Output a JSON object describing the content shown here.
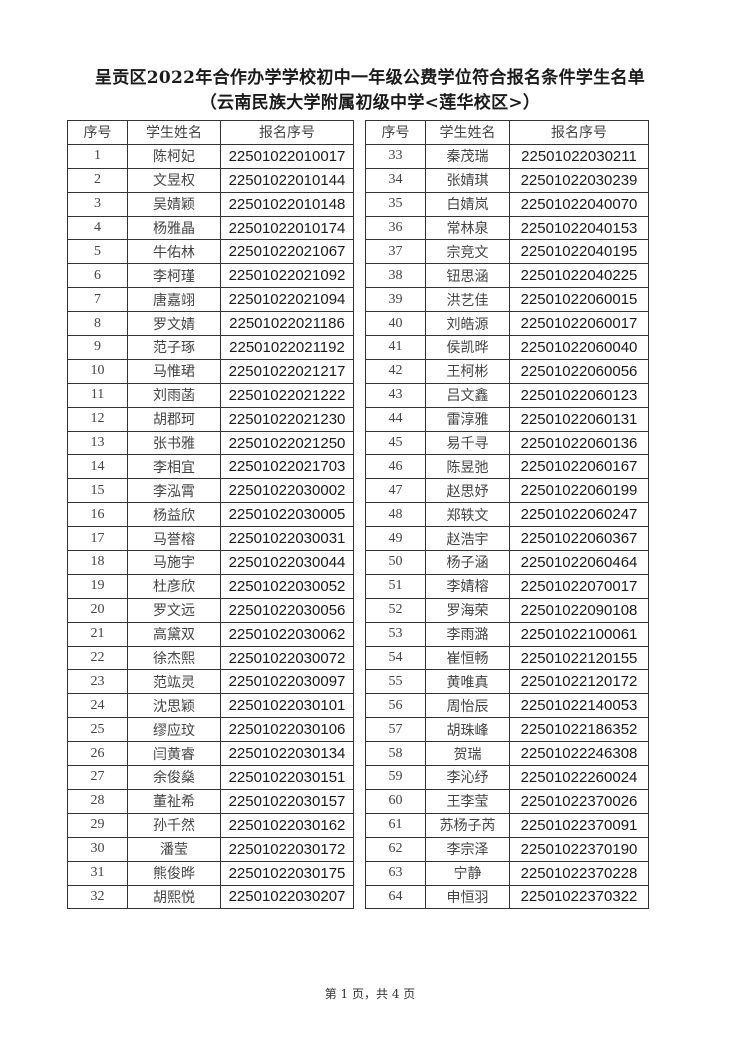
{
  "title": "呈贡区2022年合作办学学校初中一年级公费学位符合报名条件学生名单",
  "subtitle": "（云南民族大学附属初级中学<莲华校区>）",
  "columns": [
    "序号",
    "学生姓名",
    "报名序号"
  ],
  "left_rows": [
    [
      "1",
      "陈柯妃",
      "22501022010017"
    ],
    [
      "2",
      "文昱权",
      "22501022010144"
    ],
    [
      "3",
      "吴婧颖",
      "22501022010148"
    ],
    [
      "4",
      "杨雅晶",
      "22501022010174"
    ],
    [
      "5",
      "牛佑林",
      "22501022021067"
    ],
    [
      "6",
      "李柯瑾",
      "22501022021092"
    ],
    [
      "7",
      "唐嘉翊",
      "22501022021094"
    ],
    [
      "8",
      "罗文婧",
      "22501022021186"
    ],
    [
      "9",
      "范子琢",
      "22501022021192"
    ],
    [
      "10",
      "马惟珺",
      "22501022021217"
    ],
    [
      "11",
      "刘雨菡",
      "22501022021222"
    ],
    [
      "12",
      "胡郡珂",
      "22501022021230"
    ],
    [
      "13",
      "张书雅",
      "22501022021250"
    ],
    [
      "14",
      "李相宜",
      "22501022021703"
    ],
    [
      "15",
      "李泓霄",
      "22501022030002"
    ],
    [
      "16",
      "杨益欣",
      "22501022030005"
    ],
    [
      "17",
      "马誉榕",
      "22501022030031"
    ],
    [
      "18",
      "马施宇",
      "22501022030044"
    ],
    [
      "19",
      "杜彦欣",
      "22501022030052"
    ],
    [
      "20",
      "罗文远",
      "22501022030056"
    ],
    [
      "21",
      "高黛双",
      "22501022030062"
    ],
    [
      "22",
      "徐杰熙",
      "22501022030072"
    ],
    [
      "23",
      "范竑灵",
      "22501022030097"
    ],
    [
      "24",
      "沈思颖",
      "22501022030101"
    ],
    [
      "25",
      "缪应玟",
      "22501022030106"
    ],
    [
      "26",
      "闫黄睿",
      "22501022030134"
    ],
    [
      "27",
      "余俊燊",
      "22501022030151"
    ],
    [
      "28",
      "董祉希",
      "22501022030157"
    ],
    [
      "29",
      "孙千然",
      "22501022030162"
    ],
    [
      "30",
      "潘莹",
      "22501022030172"
    ],
    [
      "31",
      "熊俊晔",
      "22501022030175"
    ],
    [
      "32",
      "胡熙悦",
      "22501022030207"
    ]
  ],
  "right_rows": [
    [
      "33",
      "秦茂瑞",
      "22501022030211"
    ],
    [
      "34",
      "张婧琪",
      "22501022030239"
    ],
    [
      "35",
      "白婧岚",
      "22501022040070"
    ],
    [
      "36",
      "常林泉",
      "22501022040153"
    ],
    [
      "37",
      "宗竞文",
      "22501022040195"
    ],
    [
      "38",
      "钮思涵",
      "22501022040225"
    ],
    [
      "39",
      "洪艺佳",
      "22501022060015"
    ],
    [
      "40",
      "刘皓源",
      "22501022060017"
    ],
    [
      "41",
      "侯凯晔",
      "22501022060040"
    ],
    [
      "42",
      "王柯彬",
      "22501022060056"
    ],
    [
      "43",
      "吕文鑫",
      "22501022060123"
    ],
    [
      "44",
      "雷淳雅",
      "22501022060131"
    ],
    [
      "45",
      "易千寻",
      "22501022060136"
    ],
    [
      "46",
      "陈昱弛",
      "22501022060167"
    ],
    [
      "47",
      "赵思妤",
      "22501022060199"
    ],
    [
      "48",
      "郑轶文",
      "22501022060247"
    ],
    [
      "49",
      "赵浩宇",
      "22501022060367"
    ],
    [
      "50",
      "杨子涵",
      "22501022060464"
    ],
    [
      "51",
      "李婧榕",
      "22501022070017"
    ],
    [
      "52",
      "罗海荣",
      "22501022090108"
    ],
    [
      "53",
      "李雨潞",
      "22501022100061"
    ],
    [
      "54",
      "崔恒畅",
      "22501022120155"
    ],
    [
      "55",
      "黄唯真",
      "22501022120172"
    ],
    [
      "56",
      "周怡辰",
      "22501022140053"
    ],
    [
      "57",
      "胡珠峰",
      "22501022186352"
    ],
    [
      "58",
      "贺瑞",
      "22501022246308"
    ],
    [
      "59",
      "李沁纾",
      "22501022260024"
    ],
    [
      "60",
      "王李莹",
      "22501022370026"
    ],
    [
      "61",
      "苏杨子芮",
      "22501022370091"
    ],
    [
      "62",
      "李宗泽",
      "22501022370190"
    ],
    [
      "63",
      "宁静",
      "22501022370228"
    ],
    [
      "64",
      "申恒羽",
      "22501022370322"
    ]
  ],
  "footer": "第 1 页，共 4 页"
}
